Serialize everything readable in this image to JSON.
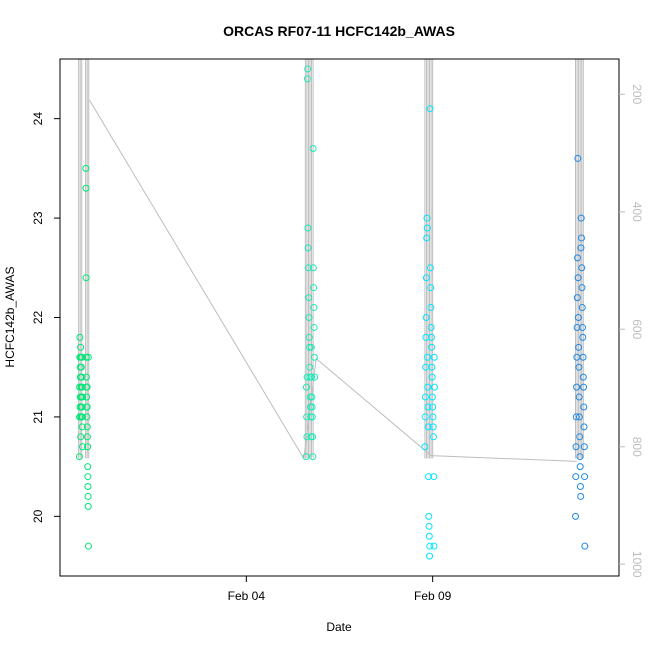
{
  "chart_data": {
    "type": "scatter",
    "title": "ORCAS RF07-11 HCFC142b_AWAS",
    "xlabel": "Date",
    "ylabel": "HCFC142b_AWAS",
    "xlim": [
      "2016-01-30T00:00",
      "2016-02-14T00:00"
    ],
    "ylim": [
      19.4,
      24.6
    ],
    "x_ticks": [
      {
        "label": "Feb 04",
        "date": "2016-02-04T00:00"
      },
      {
        "label": "Feb 09",
        "date": "2016-02-09T00:00"
      }
    ],
    "y_ticks": [
      20,
      21,
      22,
      23,
      24
    ],
    "secondary_axis": {
      "position": "right",
      "reversed": true,
      "color": "#bdbdbd",
      "ticks": [
        200,
        400,
        600,
        800,
        1000
      ],
      "ylim": [
        1020,
        140
      ]
    },
    "grid": false,
    "series": [
      {
        "color": "#00e676",
        "x": [
          "2016-01-30T12:30",
          "2016-01-30T12:35",
          "2016-01-30T12:40",
          "2016-01-30T12:45",
          "2016-01-30T12:50",
          "2016-01-30T12:55",
          "2016-01-30T13:00",
          "2016-01-30T13:05",
          "2016-01-30T13:10",
          "2016-01-30T13:15",
          "2016-01-30T13:20",
          "2016-01-30T13:25",
          "2016-01-30T13:30",
          "2016-01-30T13:35",
          "2016-01-30T13:40",
          "2016-01-30T13:45",
          "2016-01-30T13:50",
          "2016-01-30T13:55",
          "2016-01-30T14:00",
          "2016-01-30T14:05",
          "2016-01-30T14:10",
          "2016-01-30T14:15",
          "2016-01-30T14:20",
          "2016-01-30T14:25",
          "2016-01-30T14:30",
          "2016-01-30T14:35",
          "2016-01-30T16:40",
          "2016-01-30T16:45",
          "2016-01-30T16:50",
          "2016-01-30T16:55",
          "2016-01-30T17:00",
          "2016-01-30T17:05",
          "2016-01-30T17:10",
          "2016-01-30T17:15",
          "2016-01-30T17:20",
          "2016-01-30T17:25",
          "2016-01-30T17:30",
          "2016-01-30T17:35",
          "2016-01-30T17:40",
          "2016-01-30T17:45",
          "2016-01-30T17:50",
          "2016-01-30T17:55",
          "2016-01-30T18:00",
          "2016-01-30T18:05",
          "2016-01-30T18:10",
          "2016-01-30T18:15",
          "2016-01-30T18:20"
        ],
        "y": [
          20.6,
          21.0,
          21.3,
          21.6,
          21.8,
          21.1,
          21.5,
          21.2,
          21.4,
          21.7,
          20.8,
          21.0,
          21.6,
          21.3,
          21.1,
          21.5,
          21.2,
          21.0,
          21.4,
          21.6,
          21.1,
          20.9,
          21.3,
          21.0,
          20.7,
          21.2,
          23.5,
          23.3,
          22.4,
          21.6,
          21.4,
          21.3,
          21.2,
          21.1,
          21.0,
          21.3,
          21.1,
          20.9,
          20.8,
          20.7,
          20.5,
          20.4,
          20.3,
          20.2,
          20.1,
          21.6,
          19.7
        ]
      },
      {
        "color": "#1de9b6",
        "x": [
          "2016-02-05T14:30",
          "2016-02-05T14:40",
          "2016-02-05T14:50",
          "2016-02-05T15:00",
          "2016-02-05T15:10",
          "2016-02-05T15:20",
          "2016-02-05T15:30",
          "2016-02-05T15:40",
          "2016-02-05T15:50",
          "2016-02-05T16:00",
          "2016-02-05T16:10",
          "2016-02-05T16:20",
          "2016-02-05T16:30",
          "2016-02-05T16:40",
          "2016-02-05T16:50",
          "2016-02-05T17:00",
          "2016-02-05T17:10",
          "2016-02-05T17:20",
          "2016-02-05T17:30",
          "2016-02-05T17:40",
          "2016-02-05T17:50",
          "2016-02-05T18:00",
          "2016-02-05T18:10",
          "2016-02-05T18:20",
          "2016-02-05T18:30",
          "2016-02-05T18:40",
          "2016-02-05T18:50",
          "2016-02-05T19:00",
          "2016-02-05T19:10",
          "2016-02-05T19:20",
          "2016-02-05T19:30",
          "2016-02-05T19:40",
          "2016-02-05T19:50",
          "2016-02-05T20:00"
        ],
        "y": [
          20.6,
          21.3,
          21.0,
          20.8,
          21.4,
          24.4,
          24.5,
          22.9,
          22.7,
          22.5,
          22.2,
          22.0,
          21.8,
          21.7,
          21.5,
          21.4,
          21.2,
          21.1,
          21.0,
          20.8,
          21.7,
          21.4,
          21.2,
          21.1,
          21.0,
          20.8,
          20.6,
          23.7,
          22.5,
          22.3,
          22.1,
          21.9,
          21.6,
          21.4
        ]
      },
      {
        "color": "#00e5ff",
        "x": [
          "2016-02-08T19:00",
          "2016-02-08T19:10",
          "2016-02-08T19:20",
          "2016-02-08T19:30",
          "2016-02-08T19:40",
          "2016-02-08T19:50",
          "2016-02-08T20:00",
          "2016-02-08T20:10",
          "2016-02-08T20:20",
          "2016-02-08T20:30",
          "2016-02-08T20:40",
          "2016-02-08T20:50",
          "2016-02-08T21:00",
          "2016-02-08T21:10",
          "2016-02-08T21:20",
          "2016-02-08T21:30",
          "2016-02-08T21:40",
          "2016-02-08T21:50",
          "2016-02-08T22:00",
          "2016-02-08T22:10",
          "2016-02-08T22:20",
          "2016-02-08T22:30",
          "2016-02-08T22:40",
          "2016-02-08T22:50",
          "2016-02-08T23:00",
          "2016-02-08T23:10",
          "2016-02-08T23:20",
          "2016-02-08T23:30",
          "2016-02-08T23:40",
          "2016-02-08T23:50",
          "2016-02-09T00:00",
          "2016-02-09T00:10",
          "2016-02-09T00:20",
          "2016-02-09T00:30",
          "2016-02-09T00:40",
          "2016-02-09T00:50",
          "2016-02-09T01:00",
          "2016-02-09T01:10"
        ],
        "y": [
          20.7,
          21.0,
          21.2,
          21.5,
          21.8,
          22.0,
          22.4,
          22.8,
          23.0,
          22.9,
          21.6,
          21.3,
          21.1,
          20.9,
          20.4,
          20.0,
          19.9,
          19.8,
          19.6,
          19.7,
          24.1,
          22.5,
          22.3,
          22.1,
          21.9,
          21.8,
          21.7,
          21.5,
          21.4,
          21.2,
          21.1,
          21.0,
          20.9,
          20.8,
          20.4,
          19.7,
          21.6,
          21.3
        ]
      },
      {
        "color": "#1e88e5",
        "x": [
          "2016-02-12T20:00",
          "2016-02-12T20:10",
          "2016-02-12T20:20",
          "2016-02-12T20:30",
          "2016-02-12T20:40",
          "2016-02-12T20:50",
          "2016-02-12T21:00",
          "2016-02-12T21:10",
          "2016-02-12T21:20",
          "2016-02-12T21:30",
          "2016-02-12T21:40",
          "2016-02-12T21:50",
          "2016-02-12T22:00",
          "2016-02-12T22:10",
          "2016-02-12T22:20",
          "2016-02-12T22:30",
          "2016-02-12T22:40",
          "2016-02-12T22:50",
          "2016-02-12T23:00",
          "2016-02-12T23:10",
          "2016-02-12T23:20",
          "2016-02-12T23:30",
          "2016-02-12T23:40",
          "2016-02-12T23:50",
          "2016-02-13T00:00",
          "2016-02-13T00:10",
          "2016-02-13T00:20",
          "2016-02-13T00:30",
          "2016-02-13T00:40",
          "2016-02-13T00:50",
          "2016-02-13T01:00",
          "2016-02-13T01:10",
          "2016-02-13T01:20",
          "2016-02-13T01:30",
          "2016-02-13T01:40",
          "2016-02-13T01:50",
          "2016-02-13T02:00"
        ],
        "y": [
          20.0,
          20.4,
          20.7,
          21.0,
          21.3,
          21.6,
          21.9,
          22.2,
          22.6,
          23.6,
          22.4,
          22.0,
          21.7,
          21.5,
          21.2,
          21.0,
          20.8,
          20.6,
          20.5,
          20.3,
          20.2,
          22.7,
          23.0,
          22.8,
          22.5,
          22.3,
          22.1,
          21.9,
          21.8,
          21.6,
          21.4,
          21.3,
          21.1,
          20.9,
          20.7,
          20.4,
          19.7
        ]
      }
    ],
    "altitude_track": [
      {
        "x": "2016-01-30T19:00",
        "alt": 210
      },
      {
        "x": "2016-02-05T13:00",
        "alt": 820
      },
      {
        "x": "2016-02-05T21:00",
        "alt": 650
      },
      {
        "x": "2016-02-08T23:00",
        "alt": 815
      },
      {
        "x": "2016-02-12T21:00",
        "alt": 825
      }
    ],
    "flight_columns": [
      {
        "x": [
          "2016-01-30T12:00",
          "2016-01-30T13:00",
          "2016-01-30T14:00",
          "2016-01-30T16:30",
          "2016-01-30T17:30",
          "2016-01-30T18:30"
        ]
      },
      {
        "x": [
          "2016-02-05T14:00",
          "2016-02-05T15:00",
          "2016-02-05T16:00",
          "2016-02-05T17:00",
          "2016-02-05T18:00",
          "2016-02-05T19:00"
        ]
      },
      {
        "x": [
          "2016-02-08T19:00",
          "2016-02-08T20:00",
          "2016-02-08T21:00",
          "2016-02-08T22:00",
          "2016-02-08T23:00",
          "2016-02-09T00:00"
        ]
      },
      {
        "x": [
          "2016-02-12T20:00",
          "2016-02-12T21:00",
          "2016-02-12T22:00",
          "2016-02-12T23:00",
          "2016-02-13T00:00",
          "2016-02-13T01:00"
        ]
      }
    ]
  }
}
